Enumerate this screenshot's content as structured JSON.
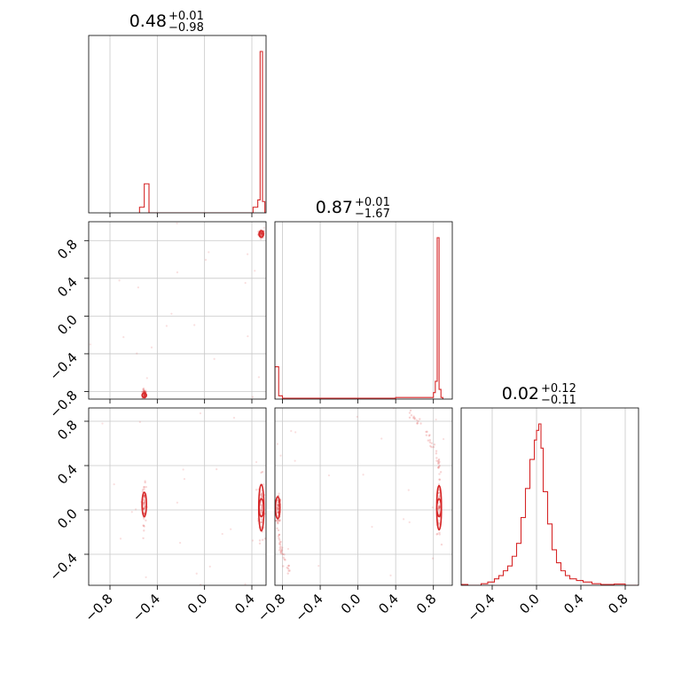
{
  "colors": {
    "series": "#d62728",
    "grid": "#c8c8c8",
    "frame": "#000000"
  },
  "chart_data": {
    "type": "corner",
    "grid": true,
    "panels": [
      {
        "kind": "histogram",
        "row": 0,
        "col": 0,
        "title": {
          "median": "0.48",
          "plus": "+0.01",
          "minus": "−0.98"
        },
        "xlim": [
          -0.98,
          0.52
        ],
        "bins": [
          -0.55,
          -0.51,
          -0.47,
          0.41,
          0.45,
          0.47,
          0.49,
          0.51
        ],
        "counts": [
          0.035,
          0.18,
          0,
          0.035,
          0.08,
          1.0,
          0.07
        ]
      },
      {
        "kind": "scatter",
        "row": 1,
        "col": 0,
        "xlim": [
          -0.98,
          0.52
        ],
        "ylim": [
          -0.88,
          1.0
        ],
        "clusters": [
          {
            "x": 0.48,
            "y": 0.87,
            "sx": 0.012,
            "sy": 0.02
          },
          {
            "x": -0.51,
            "y": -0.83,
            "sx": 0.008,
            "sy": 0.025
          }
        ],
        "contours": [
          {
            "x": 0.48,
            "y": 0.87,
            "rx": 0.018,
            "ry": 0.035
          },
          {
            "x": -0.51,
            "y": -0.84,
            "rx": 0.012,
            "ry": 0.02
          }
        ]
      },
      {
        "kind": "histogram",
        "row": 1,
        "col": 1,
        "title": {
          "median": "0.87",
          "plus": "+0.01",
          "minus": "−1.67"
        },
        "xlim": [
          -0.88,
          1.0
        ],
        "bins": [
          -0.88,
          -0.84,
          -0.8,
          -0.4,
          0.0,
          0.4,
          0.8,
          0.82,
          0.84,
          0.86,
          0.88,
          0.9
        ],
        "counts": [
          0.2,
          0.02,
          0.005,
          0.005,
          0.005,
          0.01,
          0.04,
          0.11,
          1.0,
          0.06,
          0.01
        ]
      },
      {
        "kind": "scatter",
        "row": 2,
        "col": 0,
        "xlim": [
          -0.98,
          0.52
        ],
        "ylim": [
          -0.68,
          0.92
        ],
        "clusters": [
          {
            "x": 0.48,
            "y": 0.02,
            "sx": 0.012,
            "sy": 0.14
          },
          {
            "x": -0.51,
            "y": 0.05,
            "sx": 0.008,
            "sy": 0.09
          }
        ],
        "contours": [
          {
            "x": 0.48,
            "y": 0.02,
            "rx": 0.022,
            "ry": 0.21
          },
          {
            "x": 0.48,
            "y": 0.02,
            "rx": 0.01,
            "ry": 0.08
          },
          {
            "x": -0.51,
            "y": 0.05,
            "rx": 0.014,
            "ry": 0.11
          }
        ]
      },
      {
        "kind": "scatter",
        "row": 2,
        "col": 1,
        "xlim": [
          -0.88,
          1.0
        ],
        "ylim": [
          -0.68,
          0.92
        ],
        "clusters": [
          {
            "x": 0.86,
            "y": 0.02,
            "sx": 0.012,
            "sy": 0.13
          },
          {
            "x": -0.84,
            "y": 0.0,
            "sx": 0.01,
            "sy": 0.06
          }
        ],
        "arcs": [
          {
            "xfrom": 0.86,
            "xto": 0.55,
            "yfrom": 0.35,
            "yto": 0.88
          },
          {
            "xfrom": -0.86,
            "xto": -0.7,
            "yfrom": -0.05,
            "yto": -0.62
          }
        ],
        "contours": [
          {
            "x": 0.86,
            "y": 0.02,
            "rx": 0.025,
            "ry": 0.2
          },
          {
            "x": 0.86,
            "y": 0.02,
            "rx": 0.011,
            "ry": 0.08
          },
          {
            "x": -0.85,
            "y": 0.02,
            "rx": 0.015,
            "ry": 0.1
          }
        ]
      },
      {
        "kind": "histogram",
        "row": 2,
        "col": 2,
        "title": {
          "median": "0.02",
          "plus": "+0.12",
          "minus": "−0.11"
        },
        "xlim": [
          -0.68,
          0.92
        ],
        "bins": [
          -0.68,
          -0.62,
          -0.5,
          -0.44,
          -0.38,
          -0.34,
          -0.3,
          -0.26,
          -0.22,
          -0.18,
          -0.14,
          -0.1,
          -0.06,
          -0.02,
          0.0,
          0.02,
          0.04,
          0.06,
          0.1,
          0.14,
          0.18,
          0.22,
          0.26,
          0.3,
          0.36,
          0.42,
          0.5,
          0.58,
          0.7,
          0.8,
          0.92
        ],
        "counts": [
          0.005,
          0.0,
          0.01,
          0.02,
          0.04,
          0.06,
          0.09,
          0.12,
          0.18,
          0.26,
          0.42,
          0.6,
          0.78,
          0.9,
          0.96,
          1.0,
          0.85,
          0.58,
          0.38,
          0.22,
          0.14,
          0.09,
          0.06,
          0.04,
          0.03,
          0.02,
          0.01,
          0.005,
          0.008,
          0.0
        ]
      }
    ],
    "xaxis_ticks": [
      {
        "col": 0,
        "values": [
          -0.8,
          -0.4,
          0.0,
          0.4
        ],
        "labels": [
          "−0.8",
          "−0.4",
          "0.0",
          "0.4"
        ]
      },
      {
        "col": 1,
        "values": [
          -0.8,
          -0.4,
          0.0,
          0.4,
          0.8
        ],
        "labels": [
          "−0.8",
          "−0.4",
          "0.0",
          "0.4",
          "0.8"
        ]
      },
      {
        "col": 2,
        "values": [
          -0.4,
          0.0,
          0.4,
          0.8
        ],
        "labels": [
          "−0.4",
          "0.0",
          "0.4",
          "0.8"
        ]
      }
    ],
    "yaxis_ticks": [
      {
        "row": 1,
        "values": [
          0.8,
          0.4,
          0.0,
          -0.4,
          -0.8
        ],
        "labels": [
          "0.8",
          "0.4",
          "0.0",
          "−0.4",
          "−0.8"
        ]
      },
      {
        "row": 2,
        "values": [
          0.8,
          0.4,
          0.0,
          -0.4
        ],
        "labels": [
          "0.8",
          "0.4",
          "0.0",
          "−0.4"
        ]
      }
    ]
  }
}
